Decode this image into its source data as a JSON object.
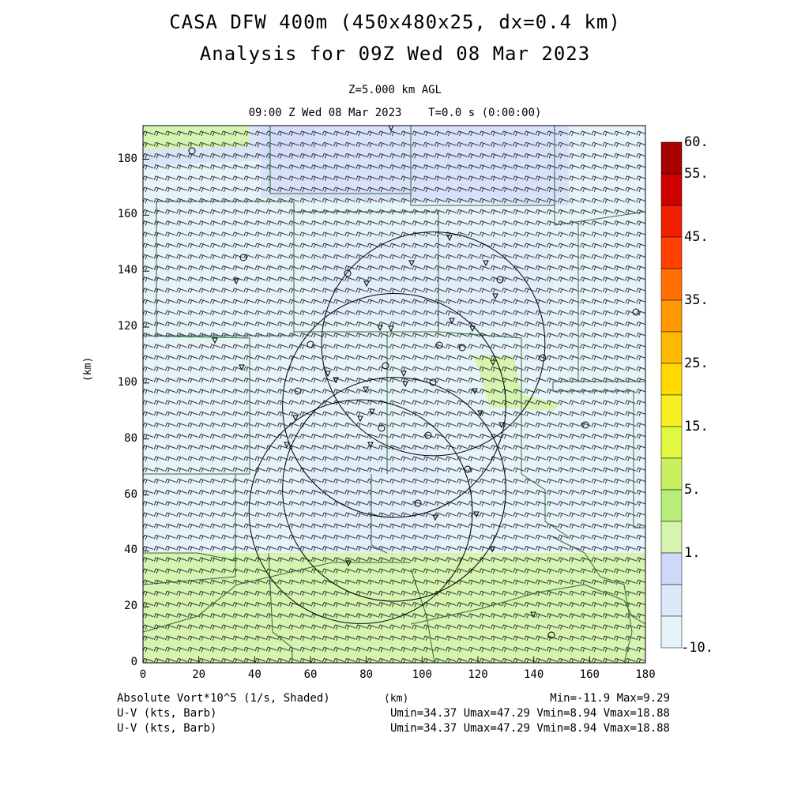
{
  "title": {
    "line1": "CASA DFW 400m (450x480x25, dx=0.4 km)",
    "line2": "Analysis for 09Z Wed 08 Mar 2023"
  },
  "subtitle": {
    "level": "Z=5.000 km AGL",
    "time": "09:00 Z Wed 08 Mar 2023    T=0.0 s (0:00:00)"
  },
  "axes": {
    "x_ticks": [
      "0",
      "20",
      "40",
      "60",
      "80",
      "100",
      "120",
      "140",
      "160",
      "180"
    ],
    "y_ticks": [
      "0",
      "20",
      "40",
      "60",
      "80",
      "100",
      "120",
      "140",
      "160",
      "180"
    ],
    "y_label": "(km)",
    "x_label": "(km)",
    "x_range": [
      0,
      180
    ],
    "y_range": [
      0,
      192
    ]
  },
  "colorbar": {
    "labels": [
      "60.",
      "55.",
      "45.",
      "35.",
      "25.",
      "15.",
      "5.",
      "1.",
      "-10."
    ],
    "colors": [
      "#a80000",
      "#d00000",
      "#f02000",
      "#ff4000",
      "#ff7000",
      "#ff9800",
      "#ffb800",
      "#ffd800",
      "#f8f020",
      "#e0f840",
      "#c8f060",
      "#b8ee78",
      "#d4f4b0",
      "#d0d8f8",
      "#dde8f8",
      "#e6f4fa"
    ]
  },
  "legend": {
    "field1": "Absolute Vort*10^5 (1/s, Shaded)",
    "field2": "U-V (kts, Barb)",
    "field3": "U-V (kts, Barb)",
    "minmax1": "Min=-11.9 Max=9.29",
    "minmax2": "Umin=34.37 Umax=47.29 Vmin=8.94 Vmax=18.88",
    "minmax3": "Umin=34.37 Umax=47.29 Vmin=8.94 Vmax=18.88"
  },
  "chart_data": {
    "type": "map",
    "field": "Absolute Vorticity x10^5 (1/s)",
    "min": -11.9,
    "max": 9.29,
    "wind": {
      "umin": 34.37,
      "umax": 47.29,
      "vmin": 8.94,
      "vmax": 18.88
    },
    "radar_rings_km": [
      {
        "cx": 78,
        "cy": 54,
        "r": 40
      },
      {
        "cx": 90,
        "cy": 62,
        "r": 40
      },
      {
        "cx": 90,
        "cy": 92,
        "r": 40
      },
      {
        "cx": 104,
        "cy": 114,
        "r": 40
      }
    ]
  }
}
